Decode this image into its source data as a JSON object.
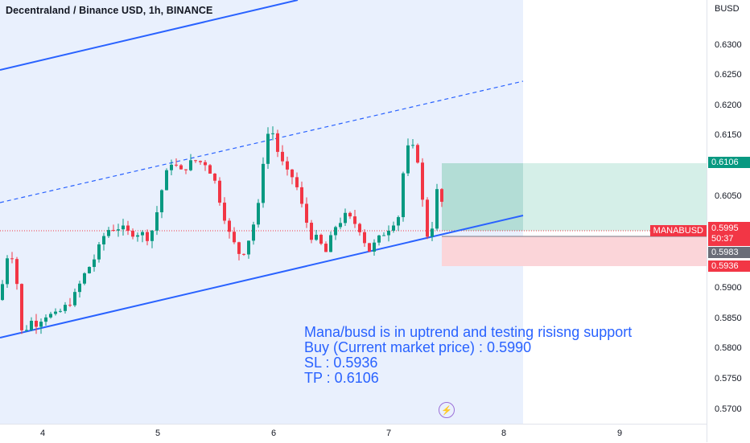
{
  "header": {
    "title": "Decentraland / Binance USD, 1h, BINANCE"
  },
  "price_axis": {
    "currency": "BUSD",
    "ticks": [
      "0.6300",
      "0.6250",
      "0.6200",
      "0.6150",
      "0.6050",
      "0.5900",
      "0.5850",
      "0.5800",
      "0.5750",
      "0.5700"
    ],
    "labels": {
      "take_profit": "0.6106",
      "current": "0.5995",
      "countdown": "50:37",
      "entry": "0.5983",
      "stop_loss": "0.5936"
    },
    "symbol_tag": "MANABUSD"
  },
  "time_axis": {
    "ticks": [
      "4",
      "5",
      "6",
      "7",
      "8",
      "9"
    ]
  },
  "annotation": {
    "line1": "Mana/busd is in uptrend and testing risisng support",
    "line2": "Buy (Current market price) : 0.5990",
    "line3": "SL : 0.5936",
    "line4": "TP : 0.6106"
  },
  "colors": {
    "up": "#089981",
    "down": "#f23645",
    "channel": "#2962ff",
    "channel_fill": "#e9f0fd",
    "profit_zone": "#d7f0ea",
    "loss_zone": "#fcd9dc"
  },
  "icons": {
    "replay": "lightning-icon"
  }
}
